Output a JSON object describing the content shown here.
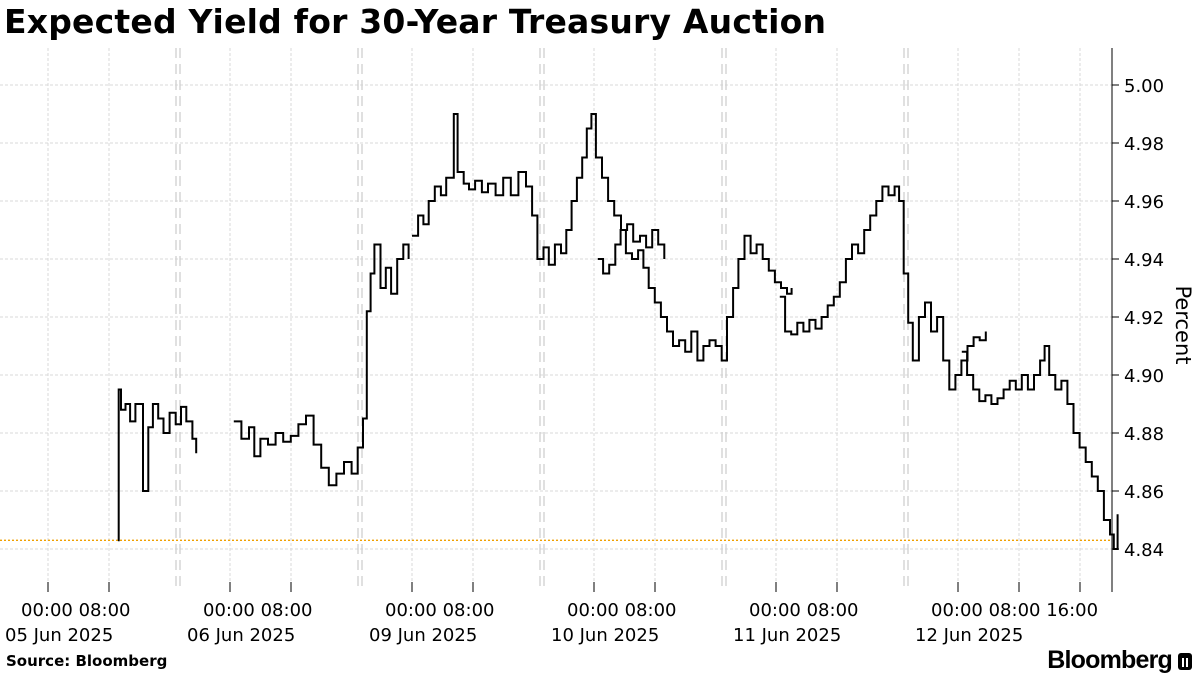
{
  "title": "Expected Yield for 30-Year Treasury Auction",
  "source": "Source: Bloomberg",
  "brand": "Bloomberg",
  "brand_icon": "bloomberg-terminal-icon",
  "chart_data": {
    "type": "line",
    "ylabel": "Percent",
    "ylim": [
      4.827,
      5.007
    ],
    "yticks": [
      4.84,
      4.86,
      4.88,
      4.9,
      4.92,
      4.94,
      4.96,
      4.98,
      5.0
    ],
    "grid": true,
    "colors": {
      "line": "#000000",
      "reference": "#f0a000",
      "grid": "#d8d8d8",
      "day_divider": "#cfcfcf"
    },
    "reference_line": {
      "value": 4.843
    },
    "days": [
      {
        "date": "05 Jun 2025",
        "ticks": [
          "00:00",
          "08:00"
        ]
      },
      {
        "date": "06 Jun 2025",
        "ticks": [
          "00:00",
          "08:00"
        ]
      },
      {
        "date": "09 Jun 2025",
        "ticks": [
          "00:00",
          "08:00"
        ]
      },
      {
        "date": "10 Jun 2025",
        "ticks": [
          "00:00",
          "08:00"
        ]
      },
      {
        "date": "11 Jun 2025",
        "ticks": [
          "00:00",
          "08:00"
        ]
      },
      {
        "date": "12 Jun 2025",
        "ticks": [
          "00:00",
          "08:00",
          "16:00"
        ]
      }
    ],
    "series": [
      {
        "values": [
          [
            [
              0,
              9.2,
              4.843
            ],
            [
              0,
              9.3,
              4.895
            ],
            [
              0,
              9.6,
              4.888
            ],
            [
              0,
              10.2,
              4.89
            ],
            [
              0,
              10.8,
              4.884
            ],
            [
              0,
              11.5,
              4.89
            ],
            [
              0,
              12.5,
              4.86
            ],
            [
              0,
              13.2,
              4.882
            ],
            [
              0,
              13.8,
              4.89
            ],
            [
              0,
              14.5,
              4.885
            ],
            [
              0,
              15.2,
              4.88
            ],
            [
              0,
              16.0,
              4.887
            ],
            [
              0,
              16.8,
              4.883
            ],
            [
              0,
              17.5,
              4.889
            ],
            [
              0,
              18.2,
              4.884
            ],
            [
              0,
              19.0,
              4.878
            ],
            [
              0,
              19.5,
              4.873
            ]
          ],
          [
            [
              1,
              0.5,
              4.884
            ],
            [
              1,
              1.5,
              4.878
            ],
            [
              1,
              2.5,
              4.882
            ],
            [
              1,
              3.2,
              4.872
            ],
            [
              1,
              4.0,
              4.878
            ],
            [
              1,
              5.0,
              4.876
            ],
            [
              1,
              6.0,
              4.88
            ],
            [
              1,
              7.0,
              4.877
            ],
            [
              1,
              8.0,
              4.879
            ],
            [
              1,
              9.0,
              4.883
            ],
            [
              1,
              10.0,
              4.886
            ],
            [
              1,
              11.0,
              4.876
            ],
            [
              1,
              12.0,
              4.868
            ],
            [
              1,
              13.0,
              4.862
            ],
            [
              1,
              14.0,
              4.866
            ],
            [
              1,
              15.0,
              4.87
            ],
            [
              1,
              16.0,
              4.866
            ],
            [
              1,
              16.8,
              4.875
            ],
            [
              1,
              17.5,
              4.885
            ],
            [
              1,
              18.0,
              4.922
            ],
            [
              1,
              18.5,
              4.935
            ],
            [
              1,
              19.0,
              4.945
            ],
            [
              1,
              19.8,
              4.93
            ],
            [
              1,
              20.5,
              4.937
            ],
            [
              1,
              21.2,
              4.928
            ],
            [
              1,
              22.0,
              4.94
            ],
            [
              1,
              22.8,
              4.945
            ],
            [
              1,
              23.5,
              4.94
            ]
          ],
          [
            [
              2,
              0.0,
              4.948
            ],
            [
              2,
              0.8,
              4.955
            ],
            [
              2,
              1.5,
              4.952
            ],
            [
              2,
              2.2,
              4.96
            ],
            [
              2,
              3.0,
              4.965
            ],
            [
              2,
              3.8,
              4.962
            ],
            [
              2,
              4.5,
              4.968
            ],
            [
              2,
              5.5,
              4.99
            ],
            [
              2,
              6.0,
              4.97
            ],
            [
              2,
              6.8,
              4.966
            ],
            [
              2,
              7.5,
              4.964
            ],
            [
              2,
              8.3,
              4.967
            ],
            [
              2,
              9.2,
              4.963
            ],
            [
              2,
              10.0,
              4.966
            ],
            [
              2,
              11.0,
              4.962
            ],
            [
              2,
              12.0,
              4.968
            ],
            [
              2,
              13.0,
              4.962
            ],
            [
              2,
              14.0,
              4.97
            ],
            [
              2,
              15.0,
              4.965
            ],
            [
              2,
              15.8,
              4.955
            ],
            [
              2,
              16.5,
              4.94
            ],
            [
              2,
              17.3,
              4.944
            ],
            [
              2,
              18.0,
              4.938
            ],
            [
              2,
              18.8,
              4.945
            ],
            [
              2,
              19.6,
              4.942
            ],
            [
              2,
              20.3,
              4.95
            ],
            [
              2,
              21.0,
              4.96
            ],
            [
              2,
              21.7,
              4.968
            ],
            [
              2,
              22.4,
              4.975
            ],
            [
              2,
              23.0,
              4.985
            ],
            [
              2,
              23.6,
              4.99
            ],
            [
              2,
              24.2,
              4.975
            ],
            [
              2,
              25.0,
              4.968
            ],
            [
              2,
              25.8,
              4.96
            ],
            [
              2,
              26.6,
              4.955
            ],
            [
              2,
              27.5,
              4.95
            ],
            [
              2,
              28.3,
              4.952
            ],
            [
              2,
              29.1,
              4.946
            ],
            [
              2,
              30.0,
              4.948
            ],
            [
              2,
              30.8,
              4.944
            ],
            [
              2,
              31.6,
              4.95
            ],
            [
              2,
              32.4,
              4.945
            ],
            [
              2,
              33.2,
              4.94
            ]
          ],
          [
            [
              3,
              0.5,
              4.94
            ],
            [
              3,
              1.2,
              4.935
            ],
            [
              3,
              2.0,
              4.938
            ],
            [
              3,
              2.8,
              4.945
            ],
            [
              3,
              3.5,
              4.95
            ],
            [
              3,
              4.2,
              4.942
            ],
            [
              3,
              5.0,
              4.94
            ],
            [
              3,
              5.8,
              4.943
            ],
            [
              3,
              6.5,
              4.937
            ],
            [
              3,
              7.2,
              4.93
            ],
            [
              3,
              8.0,
              4.925
            ],
            [
              3,
              8.8,
              4.92
            ],
            [
              3,
              9.6,
              4.915
            ],
            [
              3,
              10.4,
              4.91
            ],
            [
              3,
              11.2,
              4.912
            ],
            [
              3,
              12.0,
              4.908
            ],
            [
              3,
              12.8,
              4.915
            ],
            [
              3,
              13.6,
              4.905
            ],
            [
              3,
              14.4,
              4.91
            ],
            [
              3,
              15.2,
              4.912
            ],
            [
              3,
              16.0,
              4.91
            ],
            [
              3,
              16.8,
              4.905
            ],
            [
              3,
              17.5,
              4.92
            ],
            [
              3,
              18.3,
              4.93
            ],
            [
              3,
              19.0,
              4.94
            ],
            [
              3,
              19.8,
              4.948
            ],
            [
              3,
              20.6,
              4.942
            ],
            [
              3,
              21.4,
              4.945
            ],
            [
              3,
              22.2,
              4.94
            ],
            [
              3,
              23.0,
              4.936
            ],
            [
              3,
              23.8,
              4.932
            ],
            [
              3,
              24.6,
              4.93
            ],
            [
              3,
              25.4,
              4.928
            ],
            [
              3,
              26.0,
              4.93
            ]
          ],
          [
            [
              4,
              0.5,
              4.927
            ],
            [
              4,
              1.2,
              4.915
            ],
            [
              4,
              2.0,
              4.914
            ],
            [
              4,
              2.8,
              4.918
            ],
            [
              4,
              3.6,
              4.915
            ],
            [
              4,
              4.4,
              4.919
            ],
            [
              4,
              5.2,
              4.916
            ],
            [
              4,
              6.0,
              4.92
            ],
            [
              4,
              6.8,
              4.924
            ],
            [
              4,
              7.6,
              4.927
            ],
            [
              4,
              8.4,
              4.932
            ],
            [
              4,
              9.2,
              4.94
            ],
            [
              4,
              10.0,
              4.945
            ],
            [
              4,
              10.8,
              4.942
            ],
            [
              4,
              11.6,
              4.95
            ],
            [
              4,
              12.4,
              4.955
            ],
            [
              4,
              13.2,
              4.96
            ],
            [
              4,
              14.0,
              4.965
            ],
            [
              4,
              14.8,
              4.962
            ],
            [
              4,
              15.6,
              4.965
            ],
            [
              4,
              16.2,
              4.96
            ],
            [
              4,
              16.8,
              4.935
            ],
            [
              4,
              17.4,
              4.918
            ],
            [
              4,
              18.0,
              4.905
            ],
            [
              4,
              18.8,
              4.92
            ],
            [
              4,
              19.6,
              4.925
            ],
            [
              4,
              20.4,
              4.915
            ],
            [
              4,
              21.2,
              4.92
            ],
            [
              4,
              22.0,
              4.905
            ],
            [
              4,
              22.8,
              4.895
            ],
            [
              4,
              23.6,
              4.9
            ],
            [
              4,
              24.4,
              4.905
            ],
            [
              4,
              25.2,
              4.91
            ],
            [
              4,
              26.0,
              4.913
            ],
            [
              4,
              26.8,
              4.912
            ],
            [
              4,
              27.6,
              4.915
            ]
          ],
          [
            [
              5,
              0.5,
              4.908
            ],
            [
              5,
              1.2,
              4.9
            ],
            [
              5,
              2.0,
              4.895
            ],
            [
              5,
              2.8,
              4.891
            ],
            [
              5,
              3.6,
              4.893
            ],
            [
              5,
              4.4,
              4.89
            ],
            [
              5,
              5.2,
              4.892
            ],
            [
              5,
              6.0,
              4.895
            ],
            [
              5,
              6.8,
              4.898
            ],
            [
              5,
              7.6,
              4.895
            ],
            [
              5,
              8.4,
              4.9
            ],
            [
              5,
              9.2,
              4.895
            ],
            [
              5,
              10.0,
              4.9
            ],
            [
              5,
              10.8,
              4.905
            ],
            [
              5,
              11.4,
              4.91
            ],
            [
              5,
              12.0,
              4.9
            ],
            [
              5,
              12.8,
              4.895
            ],
            [
              5,
              13.6,
              4.898
            ],
            [
              5,
              14.4,
              4.89
            ],
            [
              5,
              15.2,
              4.88
            ],
            [
              5,
              16.0,
              4.875
            ],
            [
              5,
              16.8,
              4.87
            ],
            [
              5,
              17.6,
              4.865
            ],
            [
              5,
              18.4,
              4.86
            ],
            [
              5,
              19.2,
              4.85
            ],
            [
              5,
              20.0,
              4.845
            ],
            [
              5,
              20.5,
              4.84
            ],
            [
              5,
              21.0,
              4.852
            ]
          ]
        ]
      }
    ]
  }
}
